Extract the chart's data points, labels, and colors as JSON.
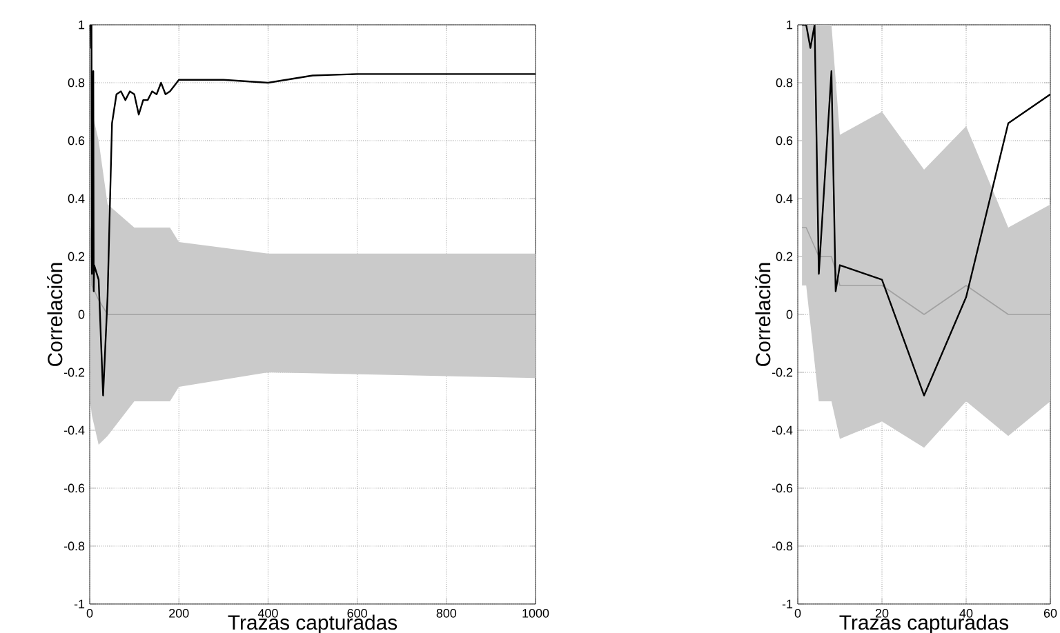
{
  "chart_data": [
    {
      "type": "line",
      "xlabel": "Trazas capturadas",
      "ylabel": "Correlación",
      "xlim": [
        0,
        1000
      ],
      "ylim": [
        -1,
        1
      ],
      "xticks": [
        0,
        200,
        400,
        600,
        800,
        1000
      ],
      "yticks": [
        -1,
        -0.8,
        -0.6,
        -0.4,
        -0.2,
        0,
        0.2,
        0.4,
        0.6,
        0.8,
        1
      ],
      "grid": true,
      "series": [
        {
          "color": "#a0a0a0",
          "x": [
            1,
            5,
            20,
            40,
            100,
            180,
            200,
            400,
            1000
          ],
          "values": [
            0.3,
            0.1,
            0.05,
            0,
            0,
            0,
            0,
            0,
            0
          ],
          "lower": [
            -0.3,
            -0.35,
            -0.45,
            -0.42,
            -0.3,
            -0.3,
            -0.25,
            -0.2,
            -0.22
          ],
          "upper": [
            0.95,
            0.7,
            0.6,
            0.38,
            0.3,
            0.3,
            0.25,
            0.21,
            0.21
          ]
        },
        {
          "color": "#000000",
          "x": [
            1,
            2,
            3,
            4,
            5,
            8,
            9,
            10,
            20,
            30,
            40,
            50,
            60,
            70,
            80,
            90,
            100,
            110,
            120,
            130,
            140,
            150,
            160,
            170,
            180,
            200,
            300,
            400,
            500,
            600,
            700,
            800,
            900,
            1000
          ],
          "values": [
            1,
            1,
            0.92,
            1,
            0.14,
            0.84,
            0.08,
            0.17,
            0.12,
            -0.28,
            0.06,
            0.66,
            0.76,
            0.77,
            0.74,
            0.77,
            0.76,
            0.69,
            0.74,
            0.74,
            0.77,
            0.76,
            0.8,
            0.76,
            0.77,
            0.81,
            0.81,
            0.8,
            0.825,
            0.83,
            0.83,
            0.83,
            0.83,
            0.83
          ]
        }
      ]
    },
    {
      "type": "line",
      "xlabel": "Trazas capturadas",
      "ylabel": "Correlación",
      "xlim": [
        0,
        60
      ],
      "ylim": [
        -1,
        1
      ],
      "xticks": [
        0,
        20,
        40,
        60
      ],
      "yticks": [
        -1,
        -0.8,
        -0.6,
        -0.4,
        -0.2,
        0,
        0.2,
        0.4,
        0.6,
        0.8,
        1
      ],
      "grid": true,
      "series": [
        {
          "color": "#a0a0a0",
          "x": [
            1,
            2,
            5,
            8,
            10,
            20,
            30,
            40,
            50,
            60
          ],
          "values": [
            0.3,
            0.3,
            0.2,
            0.2,
            0.1,
            0.1,
            0,
            0.1,
            0,
            0
          ],
          "lower": [
            0.1,
            0.1,
            -0.3,
            -0.3,
            -0.43,
            -0.37,
            -0.46,
            -0.3,
            -0.42,
            -0.3
          ],
          "upper": [
            1,
            1,
            1,
            1,
            0.62,
            0.7,
            0.5,
            0.65,
            0.3,
            0.38
          ]
        },
        {
          "color": "#000000",
          "x": [
            1,
            2,
            3,
            4,
            5,
            8,
            9,
            10,
            20,
            30,
            40,
            50,
            60
          ],
          "values": [
            1,
            1,
            0.92,
            1,
            0.14,
            0.84,
            0.08,
            0.17,
            0.12,
            -0.28,
            0.06,
            0.66,
            0.76
          ]
        }
      ]
    }
  ]
}
